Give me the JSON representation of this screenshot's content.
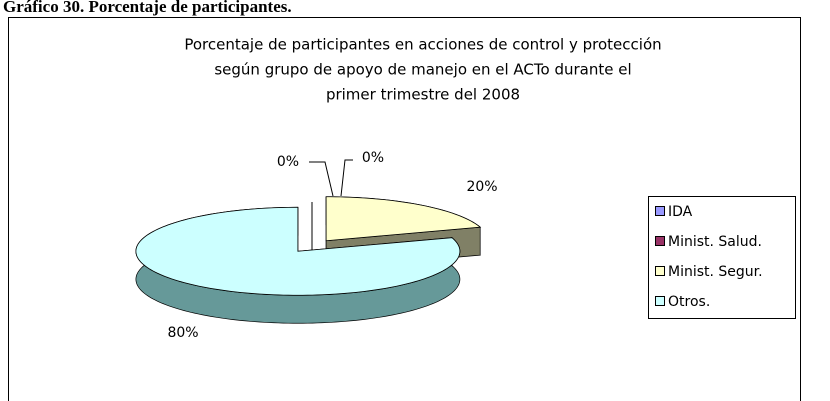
{
  "heading": "Gráfico 30. Porcentaje de participantes.",
  "chart_data": {
    "type": "pie",
    "title": [
      "Porcentaje de participantes en acciones de control y protección",
      "según grupo de apoyo de manejo en el ACTo durante el",
      "primer trimestre del 2008"
    ],
    "categories": [
      "IDA",
      "Minist. Salud.",
      "Minist. Segur.",
      "Otros."
    ],
    "values": [
      0,
      0,
      20,
      80
    ],
    "value_labels": [
      "0%",
      "0%",
      "20%",
      "80%"
    ],
    "colors": [
      "#9999ff",
      "#993366",
      "#ffffcc",
      "#ccffff"
    ],
    "side_colors": [
      "#4d4d80",
      "#4d1a33",
      "#808066",
      "#669999"
    ],
    "legend": "right"
  }
}
